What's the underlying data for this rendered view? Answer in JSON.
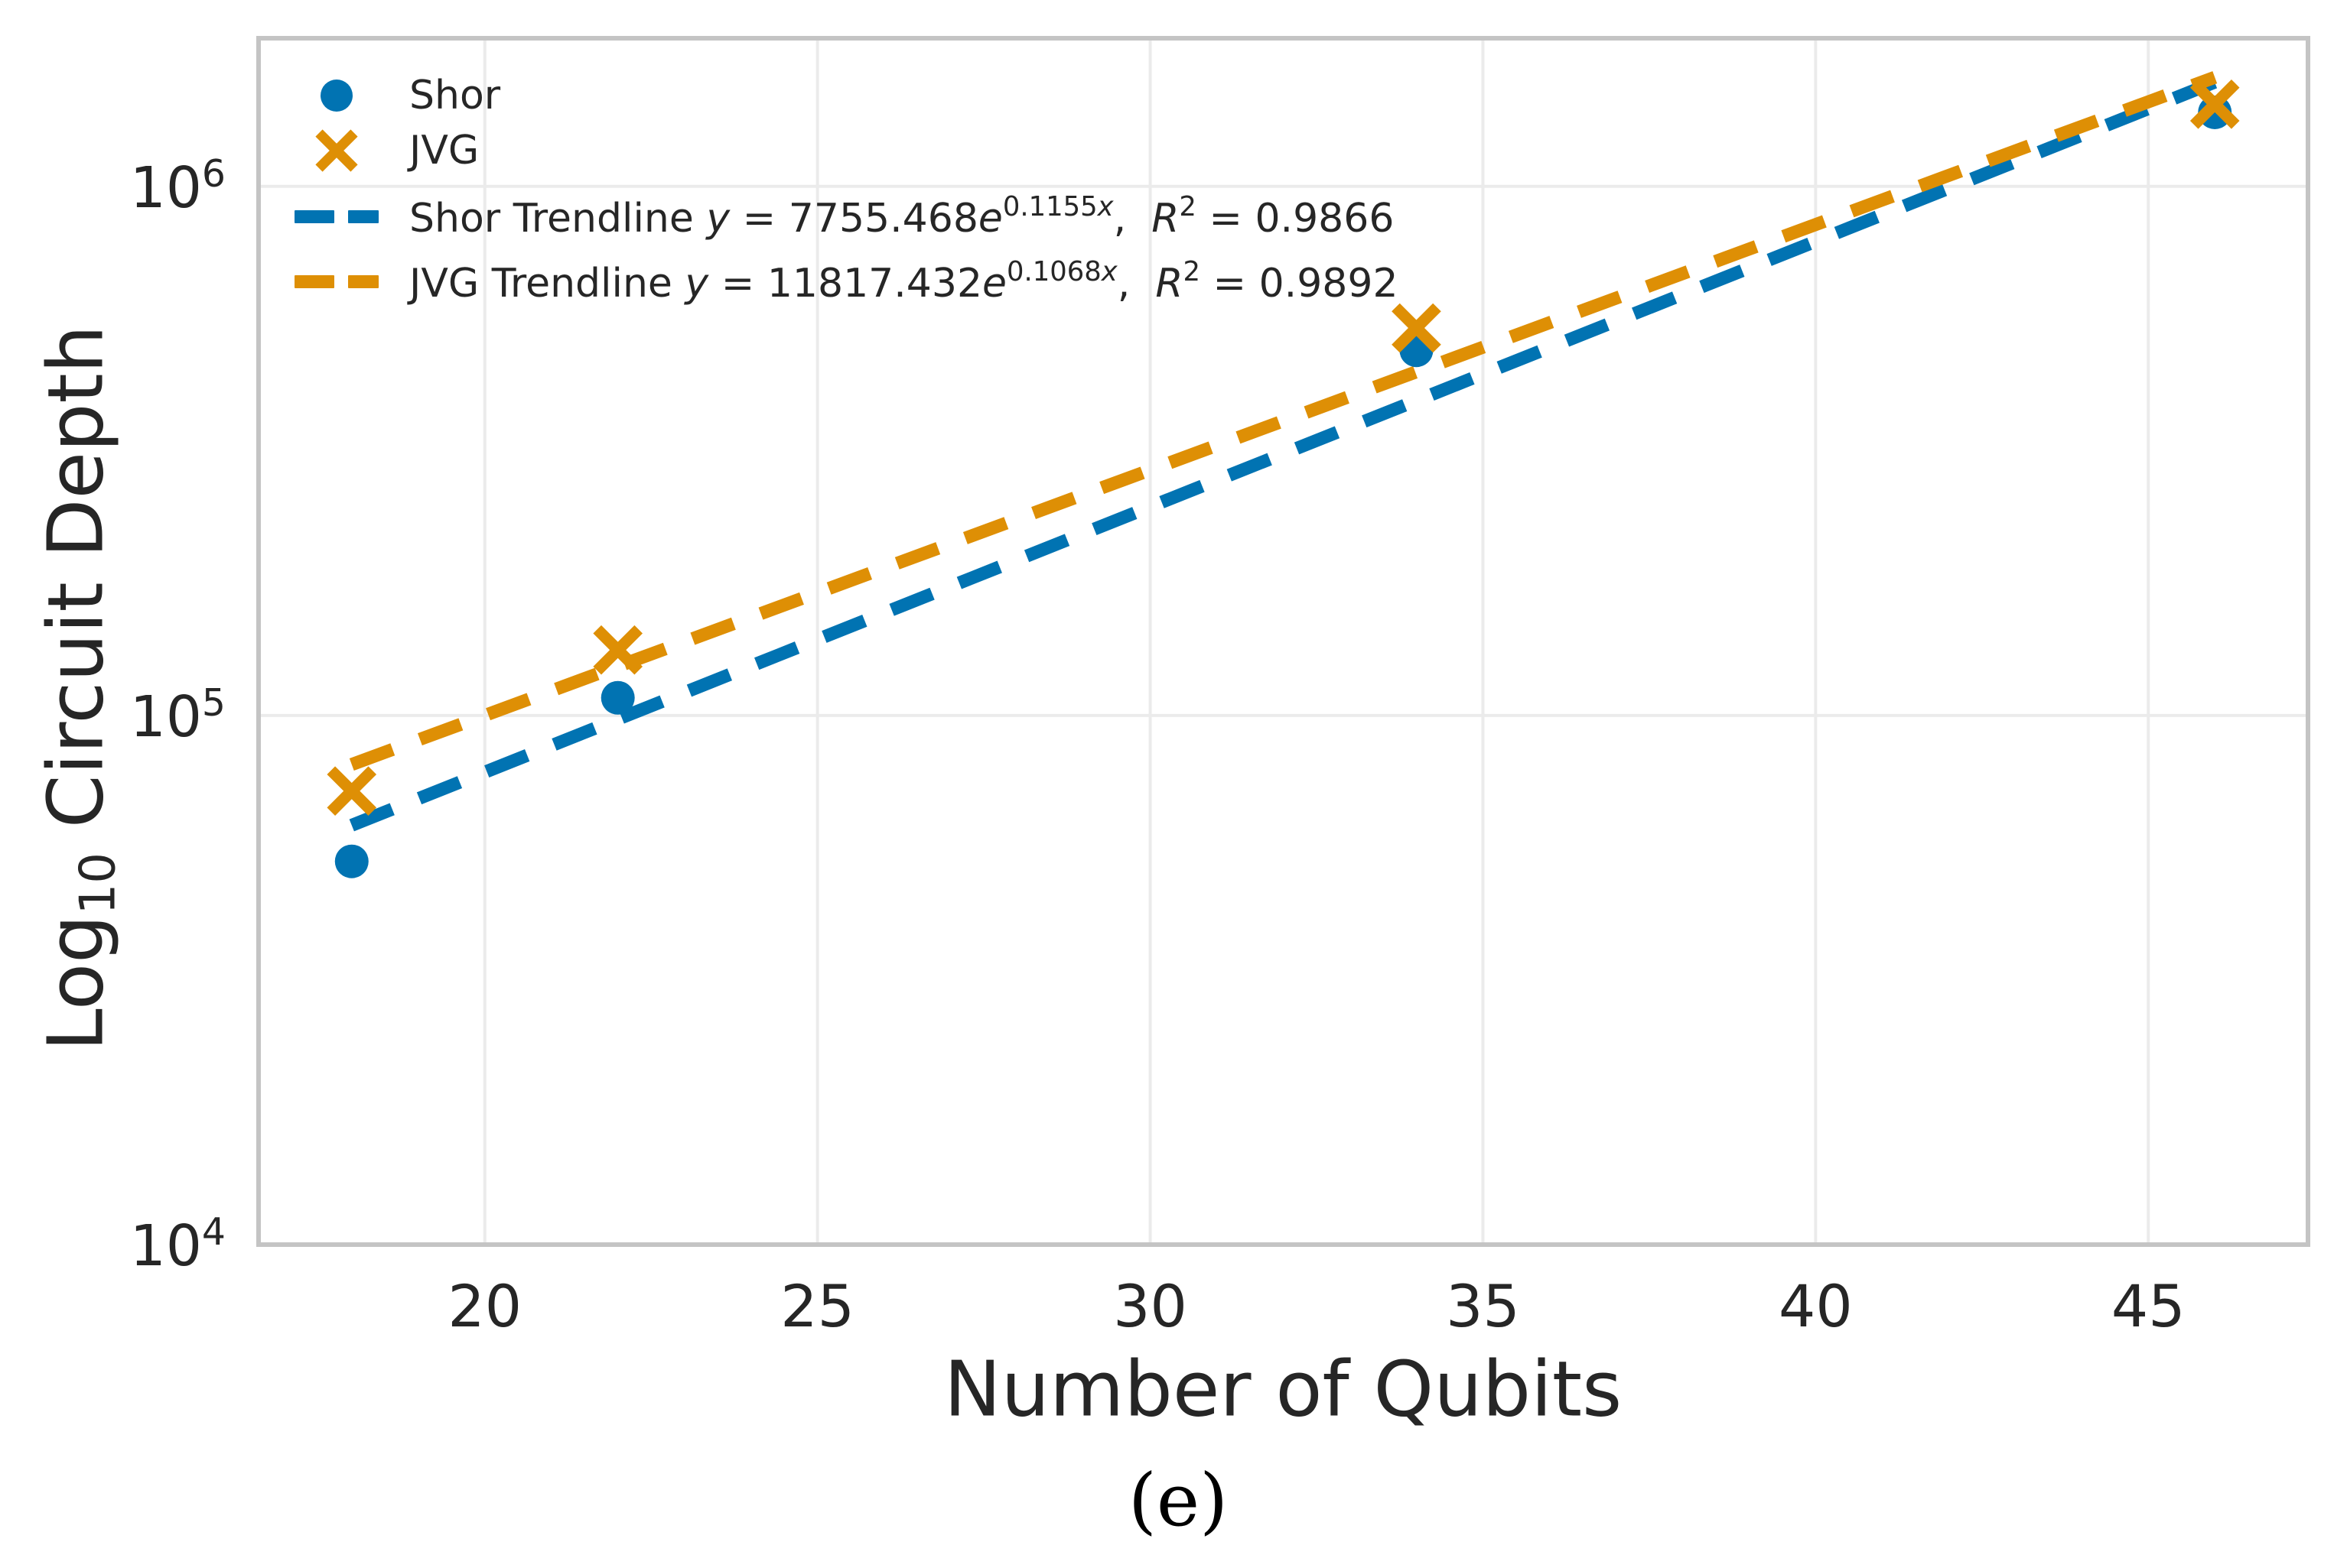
{
  "caption": {
    "text": "(e)"
  },
  "axis": {
    "ylabel_base": "Log",
    "ylabel_sub": "10",
    "ylabel_rest": " Circuit Depth"
  },
  "colors": {
    "blue": "#0173b2",
    "orange": "#de8f05",
    "grid": "#ebebeb",
    "spine": "#c4c4c4",
    "text": "#262626"
  },
  "legend": {
    "shor": {
      "label": "Shor"
    },
    "jvg": {
      "label": "JVG"
    },
    "shor_trend": {
      "name": "Shor Trendline ",
      "y": "y",
      "eq": " = ",
      "coef": "7755.468",
      "e": "e",
      "exp_coef": "0.1155",
      "exp_var": "x",
      "comma": ",  ",
      "R": "R",
      "sup": "2",
      "r2": " = 0.9866"
    },
    "jvg_trend": {
      "name": "JVG Trendline ",
      "y": "y",
      "eq": " = ",
      "coef": "11817.432",
      "e": "e",
      "exp_coef": "0.1068",
      "exp_var": "x",
      "comma": ",  ",
      "R": "R",
      "sup": "2",
      "r2": " = 0.9892"
    }
  },
  "chart_data": {
    "type": "scatter",
    "title": "",
    "xlabel": "Number of Qubits",
    "ylabel": "Log10 Circuit Depth",
    "x_ticks": [
      20,
      25,
      30,
      35,
      40,
      45
    ],
    "y_ticks_exp": [
      4,
      5,
      6
    ],
    "y_tick_base": "10",
    "xlim": [
      16.6,
      47.4
    ],
    "ylim_log10": [
      4.0,
      6.28
    ],
    "grid": true,
    "legend_position": "upper left",
    "yscale": "log",
    "series": [
      {
        "name": "Shor",
        "marker": "circle",
        "color": "#0173b2",
        "x": [
          18,
          22,
          34,
          46
        ],
        "y": [
          53000,
          108000,
          490000,
          1380000
        ]
      },
      {
        "name": "JVG",
        "marker": "x",
        "color": "#de8f05",
        "x": [
          18,
          22,
          34,
          46
        ],
        "y": [
          72000,
          133000,
          540000,
          1430000
        ]
      }
    ],
    "trendlines": [
      {
        "name": "Shor Trendline",
        "color": "#0173b2",
        "equation": "y = 7755.468e^{0.1155x}",
        "a": 7755.468,
        "b": 0.1155,
        "r2": 0.9866,
        "x_range": [
          18,
          46
        ],
        "style": "dashed"
      },
      {
        "name": "JVG Trendline",
        "color": "#de8f05",
        "equation": "y = 11817.432e^{0.1068x}",
        "a": 11817.432,
        "b": 0.1068,
        "r2": 0.9892,
        "x_range": [
          18,
          46
        ],
        "style": "dashed"
      }
    ]
  }
}
